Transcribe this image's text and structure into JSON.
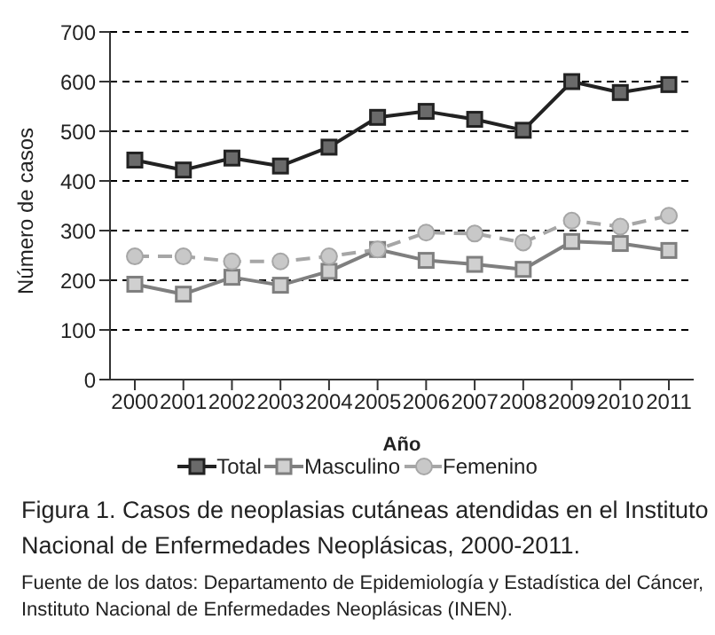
{
  "chart_data": {
    "type": "line",
    "title": "Figura 1. Casos de neoplasias cutáneas atendidas en el Instituto Nacional de Enfermedades Neoplásicas, 2000-2011.",
    "annotations": [
      "Fuente de los datos: Departamento de Epidemiología y Estadística del Cáncer, Instituto Nacional de Enfermedades Neoplásicas (INEN)."
    ],
    "xlabel": "Año",
    "ylabel": "Número de casos",
    "categories": [
      "2000",
      "2001",
      "2002",
      "2003",
      "2004",
      "2005",
      "2006",
      "2007",
      "2008",
      "2009",
      "2010",
      "2011"
    ],
    "series": [
      {
        "name": "Total",
        "color": "#222222",
        "marker": "square",
        "line_style": "solid",
        "values": [
          442,
          422,
          446,
          430,
          468,
          528,
          540,
          524,
          502,
          600,
          578,
          594
        ]
      },
      {
        "name": "Masculino",
        "color": "#7f7f7f",
        "marker": "square",
        "line_style": "solid",
        "values": [
          192,
          172,
          206,
          190,
          218,
          262,
          240,
          232,
          222,
          278,
          274,
          260
        ]
      },
      {
        "name": "Femenino",
        "color": "#a6a6a6",
        "marker": "circle",
        "line_style": "dashed",
        "values": [
          248,
          248,
          238,
          238,
          248,
          262,
          296,
          294,
          276,
          320,
          308,
          330
        ]
      }
    ],
    "ylim": [
      0,
      700
    ],
    "yticks": [
      0,
      100,
      200,
      300,
      400,
      500,
      600,
      700
    ],
    "grid": "y",
    "legend": "bottom"
  }
}
